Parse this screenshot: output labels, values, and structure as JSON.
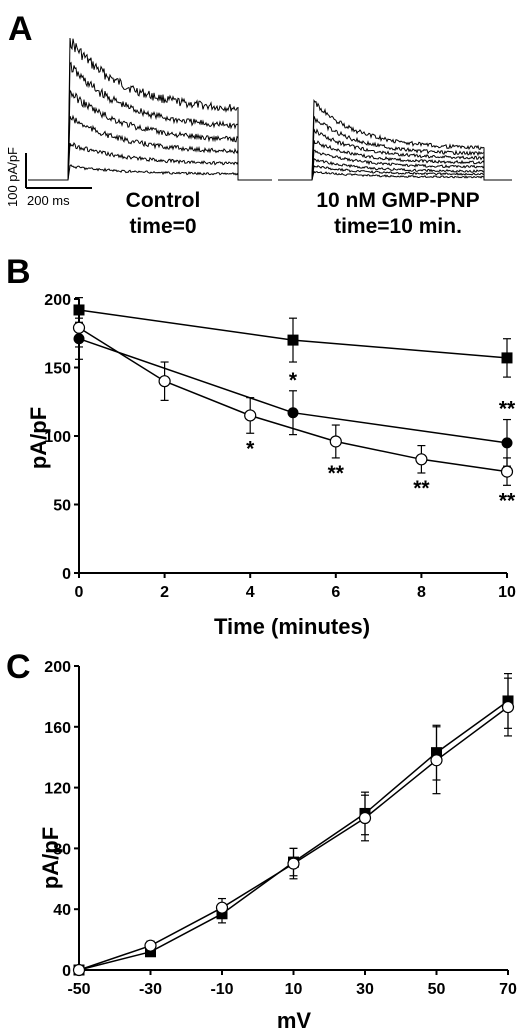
{
  "panels": {
    "a": {
      "letter": "A",
      "scale_y": "100 pA/pF",
      "scale_x": "200 ms",
      "left_caption": [
        "Control",
        "time=0"
      ],
      "right_caption": [
        "10 nM GMP-PNP",
        "time=10 min."
      ]
    },
    "b": {
      "letter": "B"
    },
    "c": {
      "letter": "C"
    }
  },
  "colors": {
    "ink": "#000000",
    "open_fill": "#ffffff"
  },
  "chart_data": [
    {
      "panel": "A",
      "type": "line",
      "description_traces": "current traces",
      "traces_left_peaks": [
        100,
        82,
        63,
        45,
        26,
        10
      ],
      "traces_left_steady": [
        48,
        36,
        27,
        19,
        11,
        4
      ],
      "traces_right_peaks": [
        56,
        45,
        36,
        28,
        21,
        15,
        10,
        6
      ],
      "traces_right_steady": [
        22,
        18,
        15,
        12,
        9,
        6,
        4,
        2
      ]
    },
    {
      "panel": "B",
      "type": "line",
      "xlabel": "Time (minutes)",
      "ylabel": "pA/pF",
      "xlim": [
        0,
        10
      ],
      "ylim": [
        0,
        200
      ],
      "xticks": [
        0,
        2,
        4,
        6,
        8,
        10
      ],
      "yticks": [
        0,
        50,
        100,
        150,
        200
      ],
      "series": [
        {
          "marker": "filled-square",
          "x": [
            0,
            5,
            10
          ],
          "y": [
            192,
            170,
            157
          ],
          "err": [
            9,
            16,
            14
          ]
        },
        {
          "marker": "filled-circle",
          "x": [
            0,
            5,
            10
          ],
          "y": [
            171,
            117,
            95
          ],
          "err": [
            15,
            16,
            17
          ]
        },
        {
          "marker": "open-circle",
          "x": [
            0,
            2,
            4,
            6,
            8,
            10
          ],
          "y": [
            179,
            140,
            115,
            96,
            83,
            74
          ],
          "err": [
            14,
            14,
            13,
            12,
            10,
            10
          ]
        }
      ],
      "annotations": [
        {
          "text": "*",
          "x": 4,
          "y": 115,
          "pos": "below"
        },
        {
          "text": "*",
          "x": 5,
          "y": 117,
          "pos": "above"
        },
        {
          "text": "**",
          "x": 6,
          "y": 96,
          "pos": "below"
        },
        {
          "text": "**",
          "x": 8,
          "y": 83,
          "pos": "below"
        },
        {
          "text": "**",
          "x": 10,
          "y": 95,
          "pos": "above"
        },
        {
          "text": "**",
          "x": 10,
          "y": 74,
          "pos": "below"
        }
      ]
    },
    {
      "panel": "C",
      "type": "line",
      "xlabel": "mV",
      "ylabel": "pA/pF",
      "xlim": [
        -50,
        70
      ],
      "ylim": [
        0,
        200
      ],
      "xticks": [
        -50,
        -30,
        -10,
        10,
        30,
        50,
        70
      ],
      "yticks": [
        0,
        40,
        80,
        120,
        160,
        200
      ],
      "series": [
        {
          "marker": "filled-square",
          "x": [
            -50,
            -30,
            -10,
            10,
            30,
            50,
            70
          ],
          "y": [
            0,
            12,
            37,
            71,
            103,
            143,
            177
          ],
          "err": [
            0,
            3,
            6,
            9,
            14,
            18,
            18
          ]
        },
        {
          "marker": "open-circle",
          "x": [
            -50,
            -30,
            -10,
            10,
            30,
            50,
            70
          ],
          "y": [
            0,
            16,
            41,
            70,
            100,
            138,
            173
          ],
          "err": [
            0,
            3,
            6,
            10,
            15,
            22,
            19
          ]
        }
      ]
    }
  ]
}
